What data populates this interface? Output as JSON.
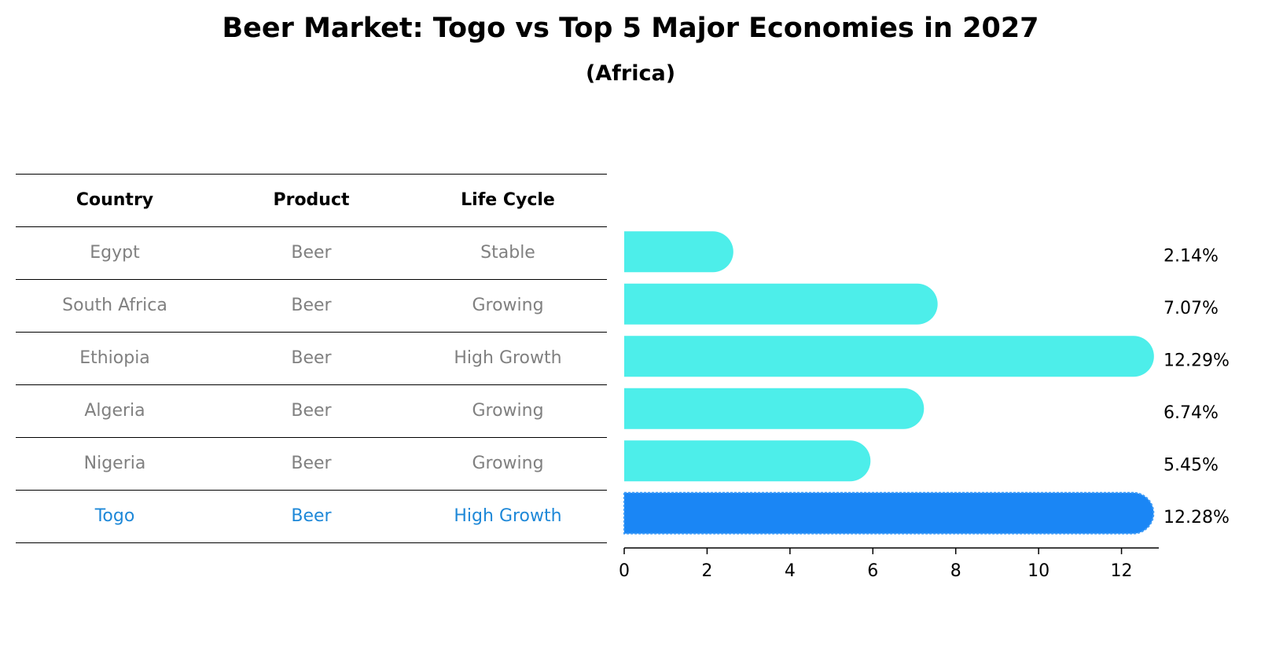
{
  "header": {
    "title": "Beer Market: Togo vs Top 5 Major Economies in 2027",
    "subtitle": "(Africa)"
  },
  "table": {
    "columns": [
      "Country",
      "Product",
      "Life Cycle"
    ],
    "rows": [
      {
        "country": "Egypt",
        "product": "Beer",
        "life_cycle": "Stable"
      },
      {
        "country": "South Africa",
        "product": "Beer",
        "life_cycle": "Growing"
      },
      {
        "country": "Ethiopia",
        "product": "Beer",
        "life_cycle": "High Growth"
      },
      {
        "country": "Algeria",
        "product": "Beer",
        "life_cycle": "Growing"
      },
      {
        "country": "Nigeria",
        "product": "Beer",
        "life_cycle": "Growing"
      },
      {
        "country": "Togo",
        "product": "Beer",
        "life_cycle": "High Growth"
      }
    ]
  },
  "chart_data": {
    "type": "bar",
    "orientation": "horizontal",
    "categories": [
      "Egypt",
      "South Africa",
      "Ethiopia",
      "Algeria",
      "Nigeria",
      "Togo"
    ],
    "values": [
      2.14,
      7.07,
      12.29,
      6.74,
      5.45,
      12.28
    ],
    "value_labels": [
      "2.14%",
      "7.07%",
      "12.29%",
      "6.74%",
      "5.45%",
      "12.28%"
    ],
    "highlight": "Togo",
    "xlim": [
      0,
      12.9
    ],
    "xticks": [
      0,
      2,
      4,
      6,
      8,
      10,
      12
    ],
    "xlabel": "",
    "ylabel": "",
    "grid": false,
    "colors": {
      "bar": "#4deeea",
      "highlight": "#1a86f5",
      "highlight_text": "#1e88d8",
      "muted_text": "#808080"
    }
  }
}
